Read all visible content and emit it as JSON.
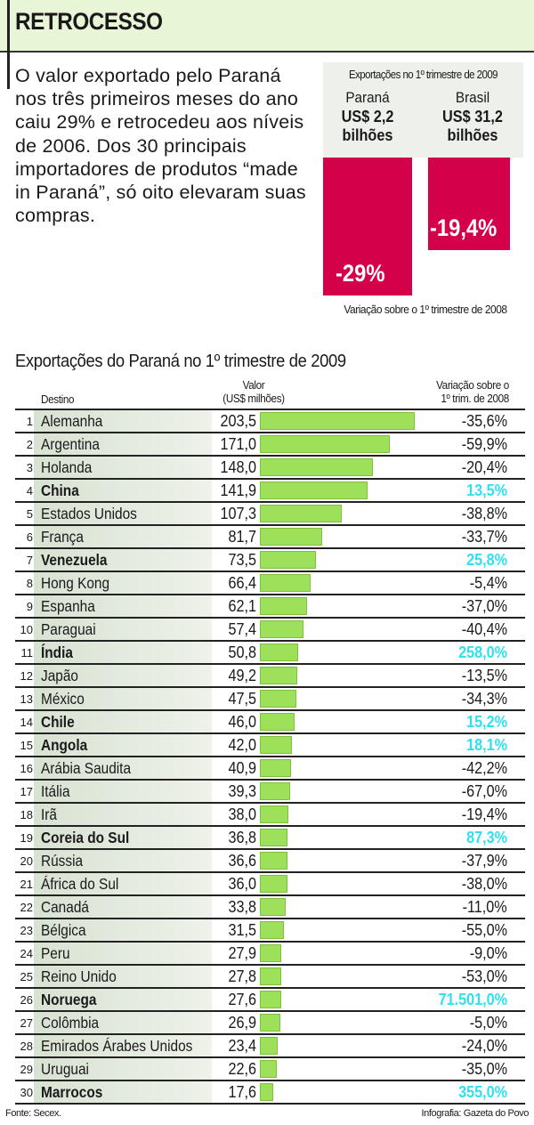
{
  "header": {
    "title": "RETROCESSO"
  },
  "intro": {
    "text": "O valor exportado pelo Paraná nos três primeiros meses do ano caiu 29% e retrocedeu aos níveis de 2006. Dos 30 principais importadores de produtos “made in Paraná”, só oito elevaram suas compras."
  },
  "summary": {
    "title": "Exportações no 1º trimestre de 2009",
    "regions": [
      {
        "name": "Paraná",
        "value_line1": "US$ 2,2",
        "value_line2": "bilhões",
        "variation": "-29%",
        "variation_value": -29
      },
      {
        "name": "Brasil",
        "value_line1": "US$ 31,2",
        "value_line2": "bilhões",
        "variation": "-19,4%",
        "variation_value": -19.4
      }
    ],
    "note": "Variação sobre o 1º trimestre de 2008",
    "bar_color": "#d4004a"
  },
  "table": {
    "title": "Exportações do Paraná no 1º trimestre de 2009",
    "col_destino": "Destino",
    "col_valor_line1": "Valor",
    "col_valor_line2": "(US$ milhões)",
    "col_var_line1": "Variação sobre o",
    "col_var_line2": "1º trim. de 2008",
    "bar_color": "#9de05a",
    "positive_color": "#2fe0f0"
  },
  "footer": {
    "source": "Fonte: Secex.",
    "credit": "Infografia: Gazeta do Povo"
  },
  "chart_data": {
    "type": "bar",
    "orientation": "horizontal",
    "title": "Exportações do Paraná no 1º trimestre de 2009",
    "xlabel": "Valor (US$ milhões)",
    "ylabel": "Destino",
    "xlim": [
      0,
      203.5
    ],
    "grid": false,
    "categories": [
      "Alemanha",
      "Argentina",
      "Holanda",
      "China",
      "Estados Unidos",
      "França",
      "Venezuela",
      "Hong Kong",
      "Espanha",
      "Paraguai",
      "Índia",
      "Japão",
      "México",
      "Chile",
      "Angola",
      "Arábia Saudita",
      "Itália",
      "Irã",
      "Coreia do Sul",
      "Rússia",
      "África do Sul",
      "Canadá",
      "Bélgica",
      "Peru",
      "Reino Unido",
      "Noruega",
      "Colômbia",
      "Emirados Árabes Unidos",
      "Uruguai",
      "Marrocos"
    ],
    "rows": [
      {
        "rank": "1",
        "name": "Alemanha",
        "value": 203.5,
        "value_label": "203,5",
        "variation": "-35,6%",
        "positive": false
      },
      {
        "rank": "2",
        "name": "Argentina",
        "value": 171.0,
        "value_label": "171,0",
        "variation": "-59,9%",
        "positive": false
      },
      {
        "rank": "3",
        "name": "Holanda",
        "value": 148.0,
        "value_label": "148,0",
        "variation": "-20,4%",
        "positive": false
      },
      {
        "rank": "4",
        "name": "China",
        "value": 141.9,
        "value_label": "141,9",
        "variation": "13,5%",
        "positive": true
      },
      {
        "rank": "5",
        "name": "Estados Unidos",
        "value": 107.3,
        "value_label": "107,3",
        "variation": "-38,8%",
        "positive": false
      },
      {
        "rank": "6",
        "name": "França",
        "value": 81.7,
        "value_label": "81,7",
        "variation": "-33,7%",
        "positive": false
      },
      {
        "rank": "7",
        "name": "Venezuela",
        "value": 73.5,
        "value_label": "73,5",
        "variation": "25,8%",
        "positive": true
      },
      {
        "rank": "8",
        "name": "Hong Kong",
        "value": 66.4,
        "value_label": "66,4",
        "variation": "-5,4%",
        "positive": false
      },
      {
        "rank": "9",
        "name": "Espanha",
        "value": 62.1,
        "value_label": "62,1",
        "variation": "-37,0%",
        "positive": false
      },
      {
        "rank": "10",
        "name": "Paraguai",
        "value": 57.4,
        "value_label": "57,4",
        "variation": "-40,4%",
        "positive": false
      },
      {
        "rank": "11",
        "name": "Índia",
        "value": 50.8,
        "value_label": "50,8",
        "variation": "258,0%",
        "positive": true
      },
      {
        "rank": "12",
        "name": "Japão",
        "value": 49.2,
        "value_label": "49,2",
        "variation": "-13,5%",
        "positive": false
      },
      {
        "rank": "13",
        "name": "México",
        "value": 47.5,
        "value_label": "47,5",
        "variation": "-34,3%",
        "positive": false
      },
      {
        "rank": "14",
        "name": "Chile",
        "value": 46.0,
        "value_label": "46,0",
        "variation": "15,2%",
        "positive": true
      },
      {
        "rank": "15",
        "name": "Angola",
        "value": 42.0,
        "value_label": "42,0",
        "variation": "18,1%",
        "positive": true
      },
      {
        "rank": "16",
        "name": "Arábia Saudita",
        "value": 40.9,
        "value_label": "40,9",
        "variation": "-42,2%",
        "positive": false
      },
      {
        "rank": "17",
        "name": "Itália",
        "value": 39.3,
        "value_label": "39,3",
        "variation": "-67,0%",
        "positive": false
      },
      {
        "rank": "18",
        "name": "Irã",
        "value": 38.0,
        "value_label": "38,0",
        "variation": "-19,4%",
        "positive": false
      },
      {
        "rank": "19",
        "name": "Coreia do Sul",
        "value": 36.8,
        "value_label": "36,8",
        "variation": "87,3%",
        "positive": true
      },
      {
        "rank": "20",
        "name": "Rússia",
        "value": 36.6,
        "value_label": "36,6",
        "variation": "-37,9%",
        "positive": false
      },
      {
        "rank": "21",
        "name": "África do Sul",
        "value": 36.0,
        "value_label": "36,0",
        "variation": "-38,0%",
        "positive": false
      },
      {
        "rank": "22",
        "name": "Canadá",
        "value": 33.8,
        "value_label": "33,8",
        "variation": "-11,0%",
        "positive": false
      },
      {
        "rank": "23",
        "name": "Bélgica",
        "value": 31.5,
        "value_label": "31,5",
        "variation": "-55,0%",
        "positive": false
      },
      {
        "rank": "24",
        "name": "Peru",
        "value": 27.9,
        "value_label": "27,9",
        "variation": "-9,0%",
        "positive": false
      },
      {
        "rank": "25",
        "name": "Reino Unido",
        "value": 27.8,
        "value_label": "27,8",
        "variation": "-53,0%",
        "positive": false
      },
      {
        "rank": "26",
        "name": "Noruega",
        "value": 27.6,
        "value_label": "27,6",
        "variation": "71.501,0%",
        "positive": true
      },
      {
        "rank": "27",
        "name": "Colômbia",
        "value": 26.9,
        "value_label": "26,9",
        "variation": "-5,0%",
        "positive": false
      },
      {
        "rank": "28",
        "name": "Emirados Árabes Unidos",
        "value": 23.4,
        "value_label": "23,4",
        "variation": "-24,0%",
        "positive": false
      },
      {
        "rank": "29",
        "name": "Uruguai",
        "value": 22.6,
        "value_label": "22,6",
        "variation": "-35,0%",
        "positive": false
      },
      {
        "rank": "30",
        "name": "Marrocos",
        "value": 17.6,
        "value_label": "17,6",
        "variation": "355,0%",
        "positive": true
      }
    ]
  }
}
